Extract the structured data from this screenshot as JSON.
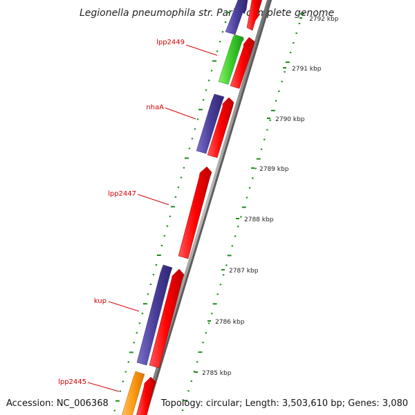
{
  "title": "Legionella pneumophila str. Paris, complete genome",
  "accession": "Accession: NC_006368",
  "summary": "Topology: circular; Length: 3,503,610 bp; Genes: 3,080",
  "colors": {
    "backbone": "#8c8c8c",
    "cds_forward": "#ff0000",
    "ticks": "#1a8a1a",
    "label": "#d40000"
  },
  "ruler": [
    {
      "label": "2792 kbp",
      "kbp": 2792
    },
    {
      "label": "2791 kbp",
      "kbp": 2791
    },
    {
      "label": "2790 kbp",
      "kbp": 2790
    },
    {
      "label": "2789 kbp",
      "kbp": 2789
    },
    {
      "label": "2788 kbp",
      "kbp": 2788
    },
    {
      "label": "2787 kbp",
      "kbp": 2787
    },
    {
      "label": "2786 kbp",
      "kbp": 2786
    },
    {
      "label": "2785 kbp",
      "kbp": 2785
    }
  ],
  "gene_labels": [
    {
      "name": "lpp2449"
    },
    {
      "name": "nhaA"
    },
    {
      "name": "lpp2447"
    },
    {
      "name": "kup"
    },
    {
      "name": "lpp2445"
    }
  ]
}
